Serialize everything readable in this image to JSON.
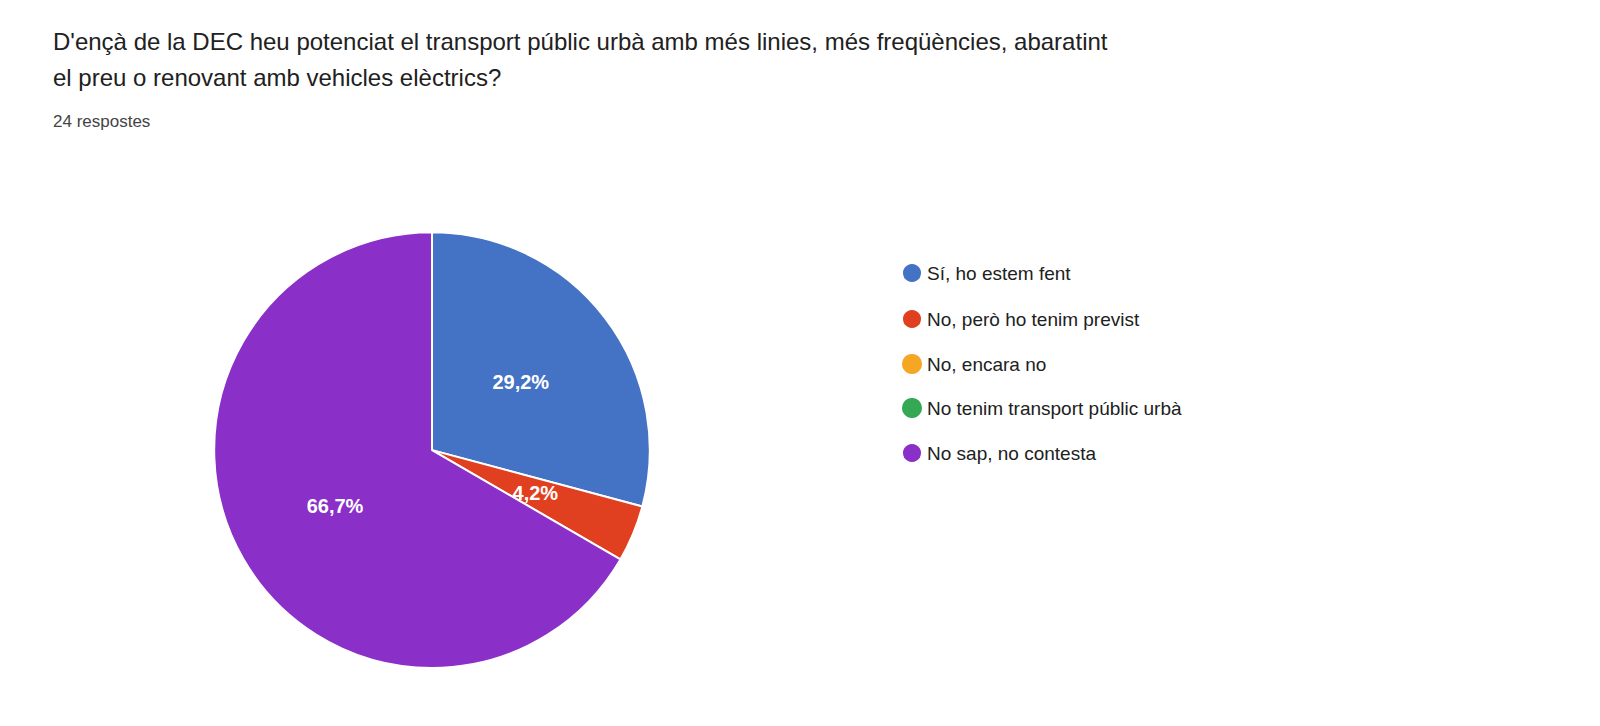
{
  "chart_data": {
    "type": "pie",
    "title": "D'ençà de la DEC heu potenciat el transport públic urbà amb més linies, més freqüències, abaratint\nel preu o renovant amb vehicles elèctrics?",
    "subtitle": "24 respostes",
    "categories": [
      "Sí, ho estem fent",
      "No, però ho tenim previst",
      "No, encara no",
      "No tenim transport públic urbà",
      "No sap, no contesta"
    ],
    "values": [
      29.2,
      4.2,
      0,
      0,
      66.7
    ],
    "value_labels": [
      "29,2%",
      "4,2%",
      null,
      null,
      "66,7%"
    ],
    "colors": [
      "#4472C4",
      "#E04020",
      "#F5A623",
      "#34A853",
      "#8B2FC9"
    ],
    "data_labels": true,
    "legend": "right"
  }
}
